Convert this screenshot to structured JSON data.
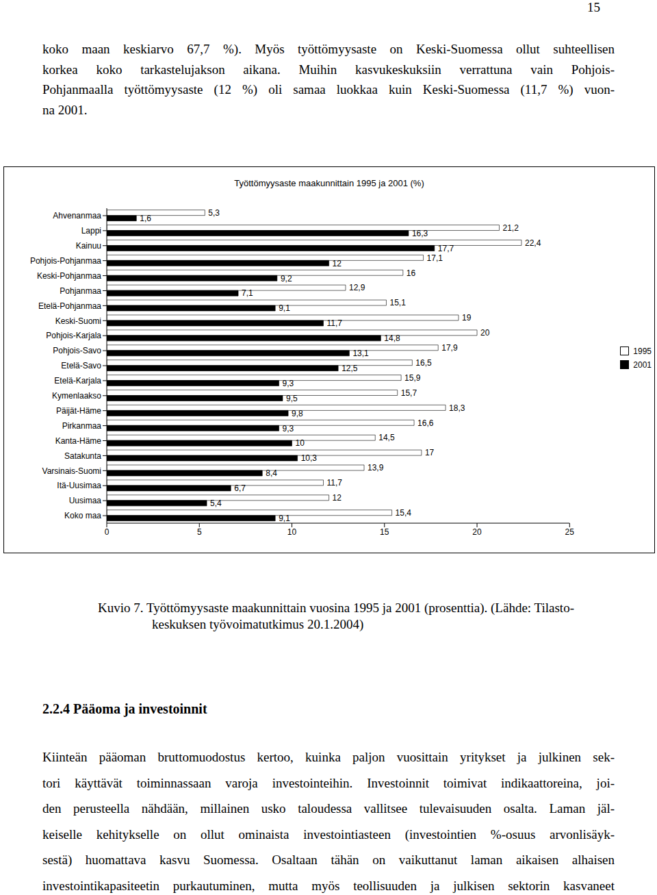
{
  "page": {
    "page_number": "15",
    "top_lines": [
      "koko maan keskiarvo 67,7 %). Myös työttömyysaste on Keski-Suomessa ollut suhteellisen",
      "korkea koko tarkastelujakson aikana. Muihin kasvukeskuksiin verrattuna vain Pohjois-",
      "Pohjanmaalla työttömyysaste (12 %) oli samaa luokkaa kuin Keski-Suomessa (11,7 %) vuon-",
      "na 2001."
    ],
    "caption_lines": [
      "Kuvio 7. Työttömyysaste maakunnittain vuosina 1995 ja 2001 (prosenttia). (Lähde: Tilasto-",
      "keskuksen työvoimatutkimus 20.1.2004)"
    ],
    "heading": "2.2.4 Pääoma ja investoinnit",
    "body_lines": [
      "Kiinteän pääoman bruttomuodostus kertoo, kuinka paljon vuosittain yritykset ja julkinen sek-",
      "tori käyttävät toiminnassaan varoja investointeihin. Investoinnit toimivat indikaattoreina, joi-",
      "den perusteella nähdään, millainen usko taloudessa vallitsee tulevaisuuden osalta. Laman jäl-",
      "keiselle kehitykselle on ollut ominaista investointiasteen (investointien %-osuus arvonlisäyk-",
      "sestä) huomattava kasvu Suomessa. Osaltaan tähän on vaikuttanut laman aikaisen alhaisen",
      "investointikapasiteetin purkautuminen, mutta myös teollisuuden ja julkisen sektorin kasvaneet"
    ]
  },
  "chart_data": {
    "type": "bar",
    "title": "Työttömyysaste maakunnittain 1995 ja 2001 (%)",
    "orientation": "horizontal",
    "categories": [
      "Ahvenanmaa",
      "Lappi",
      "Kainuu",
      "Pohjois-Pohjanmaa",
      "Keski-Pohjanmaa",
      "Pohjanmaa",
      "Etelä-Pohjanmaa",
      "Keski-Suomi",
      "Pohjois-Karjala",
      "Pohjois-Savo",
      "Etelä-Savo",
      "Etelä-Karjala",
      "Kymenlaakso",
      "Päijät-Häme",
      "Pirkanmaa",
      "Kanta-Häme",
      "Satakunta",
      "Varsinais-Suomi",
      "Itä-Uusimaa",
      "Uusimaa",
      "Koko maa"
    ],
    "series": [
      {
        "name": "1995",
        "color": "#ffffff",
        "values": [
          5.3,
          21.2,
          22.4,
          17.1,
          16,
          12.9,
          15.1,
          19,
          20,
          17.9,
          16.5,
          15.9,
          15.7,
          18.3,
          16.6,
          14.5,
          17,
          13.9,
          11.7,
          12,
          15.4
        ],
        "value_labels": [
          "5,3",
          "21,2",
          "22,4",
          "17,1",
          "16",
          "12,9",
          "15,1",
          "19",
          "20",
          "17,9",
          "16,5",
          "15,9",
          "15,7",
          "18,3",
          "16,6",
          "14,5",
          "17",
          "13,9",
          "11,7",
          "12",
          "15,4"
        ]
      },
      {
        "name": "2001",
        "color": "#000000",
        "values": [
          1.6,
          16.3,
          17.7,
          12,
          9.2,
          7.1,
          9.1,
          11.7,
          14.8,
          13.1,
          12.5,
          9.3,
          9.5,
          9.8,
          9.3,
          10,
          10.3,
          8.4,
          6.7,
          5.4,
          9.1
        ],
        "value_labels": [
          "1,6",
          "16,3",
          "17,7",
          "12",
          "9,2",
          "7,1",
          "9,1",
          "11,7",
          "14,8",
          "13,1",
          "12,5",
          "9,3",
          "9,5",
          "9,8",
          "9,3",
          "10",
          "10,3",
          "8,4",
          "6,7",
          "5,4",
          "9,1"
        ]
      }
    ],
    "xlim": [
      0,
      25
    ],
    "xticks": [
      0,
      5,
      10,
      15,
      20,
      25
    ],
    "data_labels": true,
    "legend": "right",
    "grid": false
  }
}
